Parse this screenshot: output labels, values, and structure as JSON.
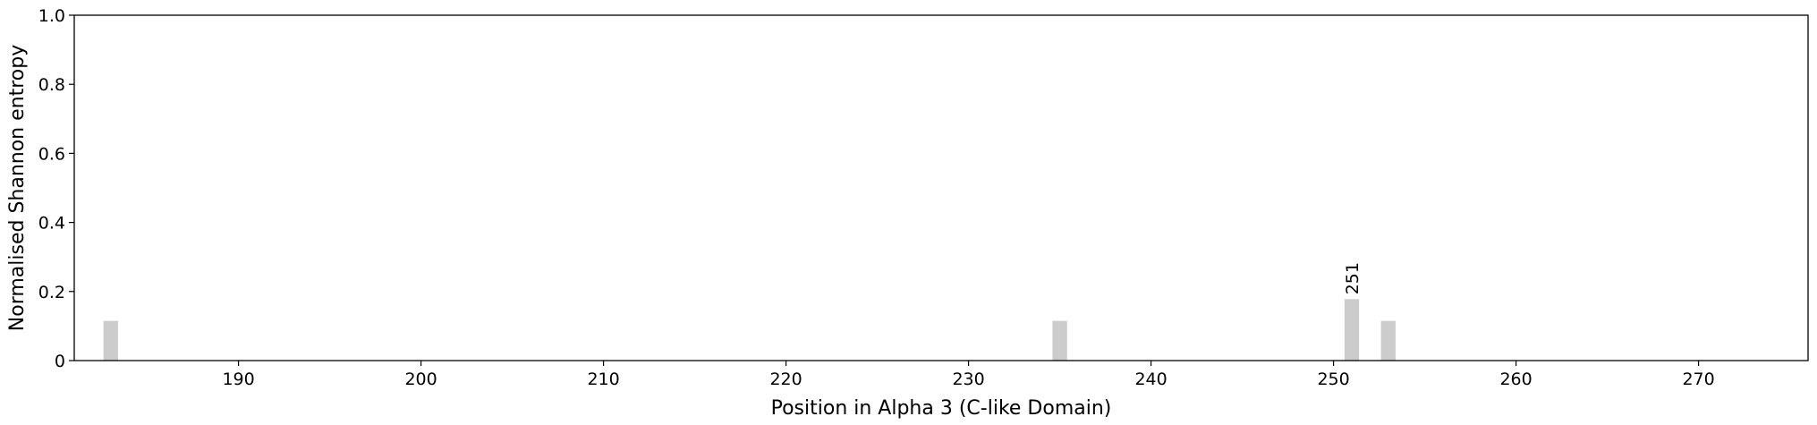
{
  "chart_data": {
    "type": "bar",
    "title": "",
    "xlabel": "Position in Alpha 3 (C-like Domain)",
    "ylabel": "Normalised Shannon entropy",
    "xlim": [
      181,
      276
    ],
    "ylim": [
      0,
      1.0
    ],
    "x_ticks": [
      190,
      200,
      210,
      220,
      230,
      240,
      250,
      260,
      270
    ],
    "y_ticks": [
      0,
      0.2,
      0.4,
      0.6,
      0.8,
      1.0
    ],
    "y_tick_labels": [
      "0",
      "0.2",
      "0.4",
      "0.6",
      "0.8",
      "1.0"
    ],
    "x": [
      183,
      235,
      251,
      253
    ],
    "values": [
      0.115,
      0.115,
      0.178,
      0.115
    ],
    "bar_color": "#cccccc",
    "annotations": [
      {
        "x": 251,
        "text": "251"
      }
    ],
    "grid": false,
    "legend": "none"
  }
}
